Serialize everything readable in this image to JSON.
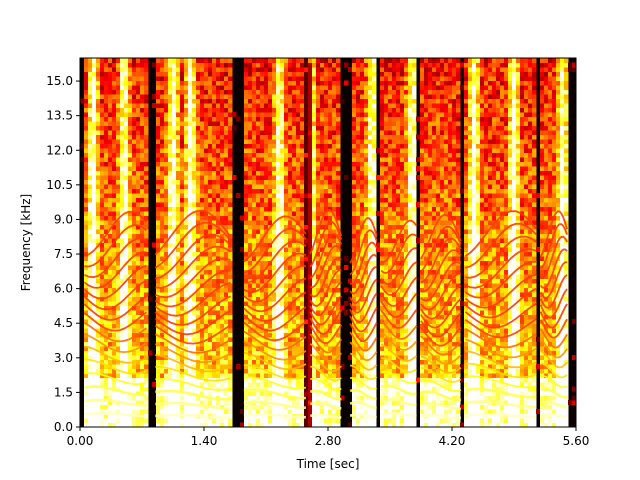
{
  "chart_data": {
    "type": "heatmap",
    "title": "",
    "xlabel": "Time [sec]",
    "ylabel": "Frequency [kHz]",
    "xlim": [
      0,
      5.6
    ],
    "ylim": [
      0,
      16
    ],
    "x_ticks": [
      "0.00",
      "1.40",
      "2.80",
      "4.20",
      "5.60"
    ],
    "x_tick_values": [
      0,
      1.4,
      2.8,
      4.2,
      5.6
    ],
    "y_ticks": [
      "0.0",
      "1.5",
      "3.0",
      "4.5",
      "6.0",
      "7.5",
      "9.0",
      "10.5",
      "12.0",
      "13.5",
      "15.0"
    ],
    "y_tick_values": [
      0,
      1.5,
      3.0,
      4.5,
      6.0,
      7.5,
      9.0,
      10.5,
      12.0,
      13.5,
      15.0
    ],
    "colormap": "hot",
    "background_color": "#0a0000",
    "grid": false,
    "voiced_segments_sec": [
      [
        0.05,
        0.75
      ],
      [
        0.85,
        1.7
      ],
      [
        1.85,
        2.55
      ],
      [
        2.6,
        2.95
      ],
      [
        3.05,
        3.35
      ],
      [
        3.4,
        3.8
      ],
      [
        3.85,
        4.3
      ],
      [
        4.35,
        5.15
      ],
      [
        5.2,
        5.5
      ]
    ],
    "bright_vertical_bands_sec": [
      0.15,
      0.5,
      1.05,
      1.25,
      2.25,
      2.6,
      3.3,
      3.75,
      4.45,
      4.9,
      5.45
    ]
  }
}
